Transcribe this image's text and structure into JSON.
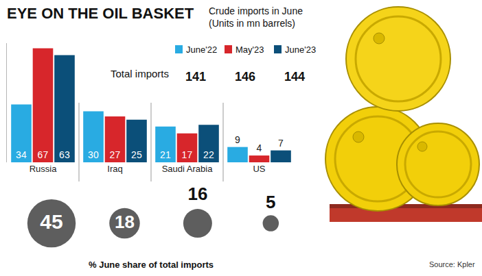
{
  "chart_data": [
    {
      "type": "bar",
      "title": "EYE ON THE OIL BASKET",
      "subtitle": "Crude imports in June (Units in mn barrels)",
      "categories": [
        "Russia",
        "Iraq",
        "Saudi Arabia",
        "US"
      ],
      "series": [
        {
          "name": "June'22",
          "color": "#29abe2",
          "values": [
            34,
            30,
            21,
            9
          ]
        },
        {
          "name": "May'23",
          "color": "#d7262b",
          "values": [
            67,
            27,
            17,
            4
          ]
        },
        {
          "name": "June'23",
          "color": "#0b4f79",
          "values": [
            63,
            25,
            22,
            7
          ]
        }
      ],
      "totals": {
        "label": "Total imports",
        "values": [
          141,
          146,
          144
        ]
      },
      "ylim": [
        0,
        70
      ],
      "grid": false,
      "data_labels": true,
      "tick_labels": "x",
      "legend": "top",
      "annotations": [
        "Source: Kpler"
      ]
    },
    {
      "type": "bubble",
      "title": "% June share of total imports",
      "categories": [
        "Russia",
        "Iraq",
        "Saudi Arabia",
        "US"
      ],
      "values": [
        45,
        18,
        16,
        5
      ],
      "color": "#1a1a1a",
      "data_labels": true,
      "tick_labels": false
    }
  ]
}
